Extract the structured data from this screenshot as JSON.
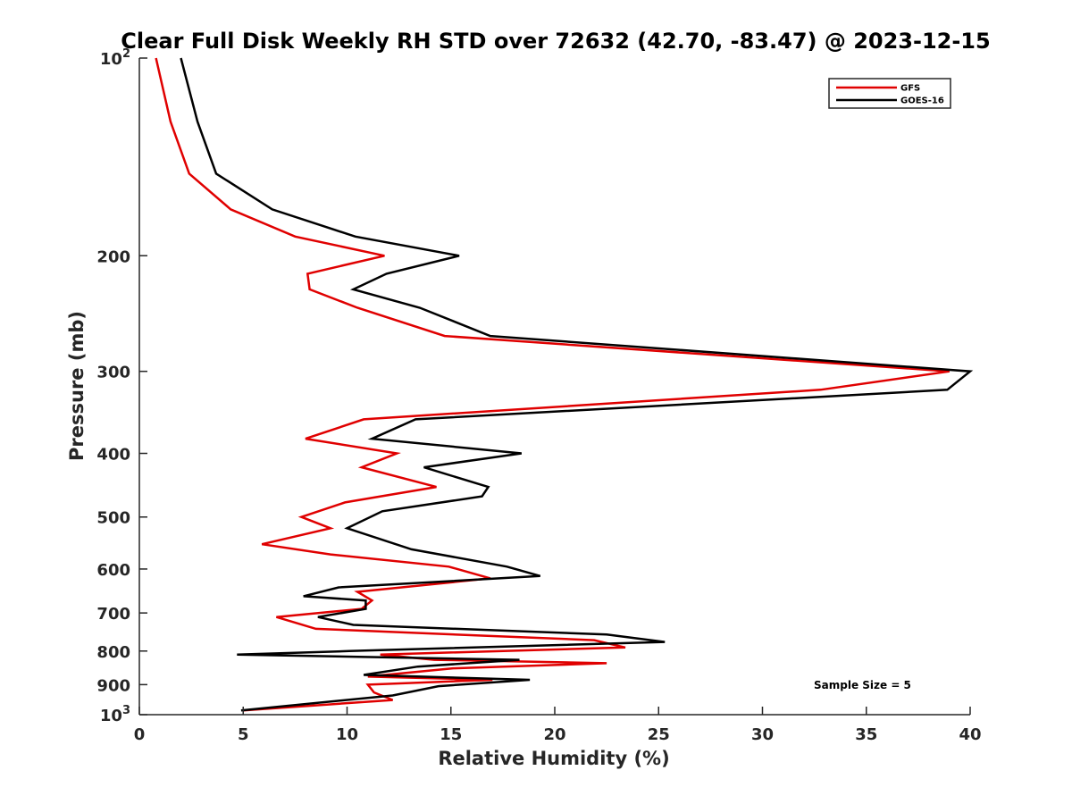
{
  "chart_data": {
    "type": "line",
    "title": "Clear Full Disk Weekly RH STD over 72632 (42.70, -83.47) @ 2023-12-15",
    "xlabel": "Relative Humidity (%)",
    "ylabel": "Pressure (mb)",
    "xlim": [
      0,
      40
    ],
    "ylim": [
      100,
      1000
    ],
    "y_scale": "log",
    "y_reversed": true,
    "x_ticks": [
      0,
      5,
      10,
      15,
      20,
      25,
      30,
      35,
      40
    ],
    "y_ticks": [
      {
        "value": 100,
        "base": "10",
        "exp": "2"
      },
      {
        "value": 200,
        "label": "200"
      },
      {
        "value": 300,
        "label": "300"
      },
      {
        "value": 400,
        "label": "400"
      },
      {
        "value": 500,
        "label": "500"
      },
      {
        "value": 600,
        "label": "600"
      },
      {
        "value": 700,
        "label": "700"
      },
      {
        "value": 800,
        "label": "800"
      },
      {
        "value": 900,
        "label": "900"
      },
      {
        "value": 1000,
        "base": "10",
        "exp": "3"
      }
    ],
    "legend_position": "top-right",
    "grid": false,
    "annotation": "Sample Size = 5",
    "series": [
      {
        "name": "GFS",
        "color": "#e00000",
        "points": [
          [
            0.8,
            100
          ],
          [
            1.5,
            125
          ],
          [
            2.4,
            150
          ],
          [
            4.4,
            170
          ],
          [
            7.5,
            187
          ],
          [
            11.8,
            200
          ],
          [
            8.1,
            213
          ],
          [
            8.2,
            225
          ],
          [
            10.5,
            240
          ],
          [
            14.7,
            265
          ],
          [
            39,
            300
          ],
          [
            32.8,
            320
          ],
          [
            10.8,
            355
          ],
          [
            8.0,
            380
          ],
          [
            12.4,
            400
          ],
          [
            10.7,
            420
          ],
          [
            14.3,
            450
          ],
          [
            9.9,
            475
          ],
          [
            7.8,
            500
          ],
          [
            9.2,
            520
          ],
          [
            5.9,
            550
          ],
          [
            9.2,
            570
          ],
          [
            14.9,
            595
          ],
          [
            16.9,
            620
          ],
          [
            10.5,
            650
          ],
          [
            11.2,
            670
          ],
          [
            10.7,
            690
          ],
          [
            6.6,
            710
          ],
          [
            8.5,
            740
          ],
          [
            21.9,
            770
          ],
          [
            23.4,
            790
          ],
          [
            11.6,
            810
          ],
          [
            14.2,
            825
          ],
          [
            22.5,
            835
          ],
          [
            15.1,
            850
          ],
          [
            11.0,
            875
          ],
          [
            17.0,
            885
          ],
          [
            11.0,
            900
          ],
          [
            11.3,
            925
          ],
          [
            12.2,
            950
          ],
          [
            5.0,
            985
          ]
        ]
      },
      {
        "name": "GOES-16",
        "color": "#000000",
        "points": [
          [
            2.0,
            100
          ],
          [
            2.8,
            125
          ],
          [
            3.7,
            150
          ],
          [
            6.4,
            170
          ],
          [
            10.4,
            187
          ],
          [
            15.4,
            200
          ],
          [
            11.9,
            213
          ],
          [
            10.3,
            225
          ],
          [
            13.5,
            240
          ],
          [
            16.9,
            265
          ],
          [
            40,
            300
          ],
          [
            38.9,
            320
          ],
          [
            13.3,
            355
          ],
          [
            11.2,
            380
          ],
          [
            18.4,
            400
          ],
          [
            13.7,
            420
          ],
          [
            16.8,
            450
          ],
          [
            16.5,
            465
          ],
          [
            11.7,
            490
          ],
          [
            10.0,
            520
          ],
          [
            13.1,
            560
          ],
          [
            17.7,
            595
          ],
          [
            19.3,
            615
          ],
          [
            9.6,
            640
          ],
          [
            7.9,
            660
          ],
          [
            10.9,
            670
          ],
          [
            10.9,
            690
          ],
          [
            8.6,
            710
          ],
          [
            10.3,
            730
          ],
          [
            22.5,
            755
          ],
          [
            25.3,
            775
          ],
          [
            10.1,
            800
          ],
          [
            4.7,
            810
          ],
          [
            18.3,
            825
          ],
          [
            13.4,
            845
          ],
          [
            10.8,
            870
          ],
          [
            18.8,
            885
          ],
          [
            14.4,
            905
          ],
          [
            12.2,
            935
          ],
          [
            4.9,
            985
          ]
        ]
      }
    ]
  }
}
